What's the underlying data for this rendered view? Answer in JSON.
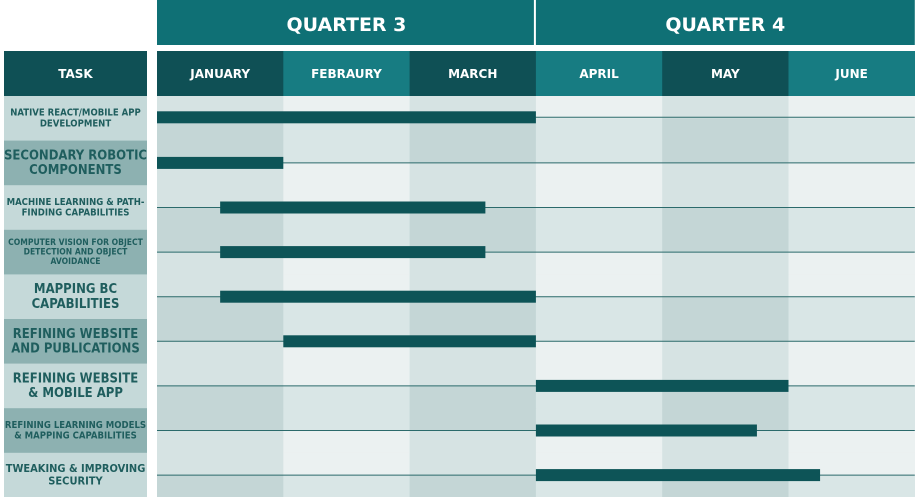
{
  "chart_data": {
    "type": "gantt",
    "quarters": [
      {
        "label": "QUARTER 3",
        "months": [
          "JANUARY",
          "FEBRAURY",
          "MARCH"
        ]
      },
      {
        "label": "QUARTER 4",
        "months": [
          "APRIL",
          "MAY",
          "JUNE"
        ]
      }
    ],
    "months": [
      "JANUARY",
      "FEBRAURY",
      "MARCH",
      "APRIL",
      "MAY",
      "JUNE"
    ],
    "task_header": "TASK",
    "tasks": [
      {
        "label_lines": [
          "NATIVE REACT/MOBILE APP",
          "DEVELOPMENT"
        ],
        "start": 0.0,
        "end": 3.0
      },
      {
        "label_lines": [
          "SECONDARY ROBOTIC",
          "COMPONENTS"
        ],
        "start": 0.0,
        "end": 1.0
      },
      {
        "label_lines": [
          "MACHINE LEARNING & PATH-",
          "FINDING CAPABILITIES"
        ],
        "start": 0.5,
        "end": 2.6
      },
      {
        "label_lines": [
          "COMPUTER VISION FOR OBJECT",
          "DETECTION AND OBJECT",
          "AVOIDANCE"
        ],
        "start": 0.5,
        "end": 2.6
      },
      {
        "label_lines": [
          "MAPPING BC",
          "CAPABILITIES"
        ],
        "start": 0.5,
        "end": 3.0
      },
      {
        "label_lines": [
          "REFINING WEBSITE",
          "AND PUBLICATIONS"
        ],
        "start": 1.0,
        "end": 3.0
      },
      {
        "label_lines": [
          "REFINING WEBSITE",
          "& MOBILE APP"
        ],
        "start": 3.0,
        "end": 5.0
      },
      {
        "label_lines": [
          "REFINING LEARNING MODELS",
          "& MAPPING CAPABILITIES"
        ],
        "start": 3.0,
        "end": 4.75
      },
      {
        "label_lines": [
          "TWEAKING & IMPROVING",
          "SECURITY"
        ],
        "start": 3.0,
        "end": 5.25
      }
    ],
    "colors": {
      "quarter_header": "#0f7075",
      "task_header": "#0f5055",
      "month_dark": "#0f5055",
      "month_light": "#177c82",
      "task_cell_light": "#c5d9d9",
      "task_cell_dark": "#8db1b1",
      "cell_odd_light": "#d6e3e3",
      "cell_odd_dark": "#ebf1f1",
      "cell_even_light": "#c4d6d6",
      "cell_even_dark": "#d9e6e6",
      "bar": "#0d5457",
      "line": "#2b6a6b",
      "task_text": "#1f5e5e"
    }
  }
}
